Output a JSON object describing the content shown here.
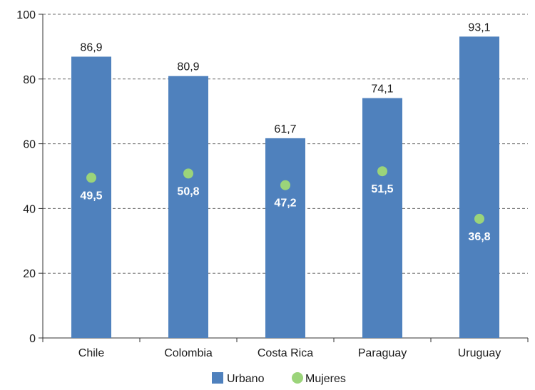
{
  "chart_data": {
    "type": "bar",
    "categories": [
      "Chile",
      "Colombia",
      "Costa Rica",
      "Paraguay",
      "Uruguay"
    ],
    "series": [
      {
        "name": "Urbano",
        "kind": "bar",
        "values": [
          86.9,
          80.9,
          61.7,
          74.1,
          93.1
        ],
        "labels": [
          "86,9",
          "80,9",
          "61,7",
          "74,1",
          "93,1"
        ],
        "color": "#4f81bd"
      },
      {
        "name": "Mujeres",
        "kind": "scatter",
        "values": [
          49.5,
          50.8,
          47.2,
          51.5,
          36.8
        ],
        "labels": [
          "49,5",
          "50,8",
          "47,2",
          "51,5",
          "36,8"
        ],
        "color": "#9bd47a"
      }
    ],
    "yticks": [
      "0",
      "20",
      "40",
      "60",
      "80",
      "100"
    ],
    "ylim": [
      0,
      100
    ],
    "grid": "horizontal dashed",
    "legend": "bottom-center"
  }
}
